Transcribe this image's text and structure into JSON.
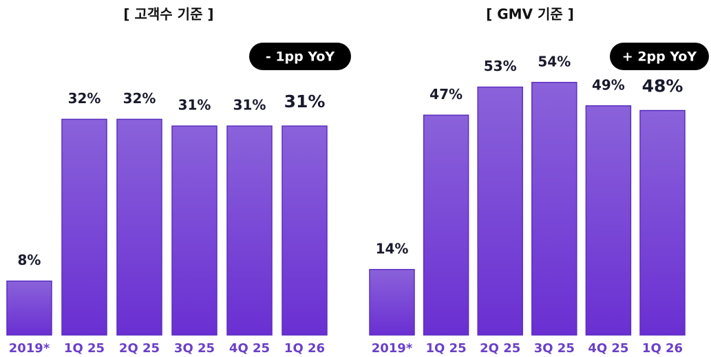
{
  "chart_data": [
    {
      "type": "bar",
      "title": "[ 고객수 기준 ]",
      "annotation": "- 1pp YoY",
      "categories": [
        "2019*",
        "1Q 25",
        "2Q 25",
        "3Q 25",
        "4Q 25",
        "1Q 26"
      ],
      "values": [
        8,
        32,
        32,
        31,
        31,
        31
      ],
      "value_labels": [
        "8%",
        "32%",
        "32%",
        "31%",
        "31%",
        "31%"
      ],
      "color": "#7a45d8"
    },
    {
      "type": "bar",
      "title": "[ GMV 기준 ]",
      "annotation": "+ 2pp YoY",
      "categories": [
        "2019*",
        "1Q 25",
        "2Q 25",
        "3Q 25",
        "4Q 25",
        "1Q 26"
      ],
      "values": [
        14,
        47,
        53,
        54,
        49,
        48
      ],
      "value_labels": [
        "14%",
        "47%",
        "53%",
        "54%",
        "49%",
        "48%"
      ],
      "color": "#7a45d8"
    }
  ]
}
